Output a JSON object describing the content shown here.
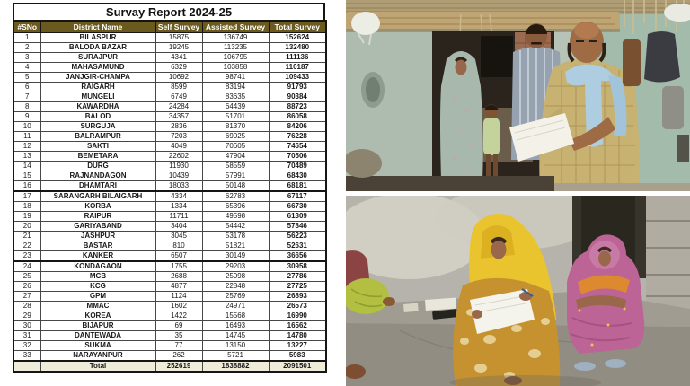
{
  "table": {
    "title": "Survay Report 2024-25",
    "headers": [
      "#SNo",
      "District Name",
      "Self Survey",
      "Assisted Survey",
      "Total Survey"
    ],
    "rows": [
      [
        "1",
        "BILASPUR",
        "15875",
        "136749",
        "152624"
      ],
      [
        "2",
        "BALODA BAZAR",
        "19245",
        "113235",
        "132480"
      ],
      [
        "3",
        "SURAJPUR",
        "4341",
        "106795",
        "111136"
      ],
      [
        "4",
        "MAHASAMUND",
        "6329",
        "103858",
        "110187"
      ],
      [
        "5",
        "JANJGIR-CHAMPA",
        "10692",
        "98741",
        "109433"
      ],
      [
        "6",
        "RAIGARH",
        "8599",
        "83194",
        "91793"
      ],
      [
        "7",
        "MUNGELI",
        "6749",
        "83635",
        "90384"
      ],
      [
        "8",
        "KAWARDHA",
        "24284",
        "64439",
        "88723"
      ],
      [
        "9",
        "BALOD",
        "34357",
        "51701",
        "86058"
      ],
      [
        "10",
        "SURGUJA",
        "2836",
        "81370",
        "84206"
      ],
      [
        "11",
        "BALRAMPUR",
        "7203",
        "69025",
        "76228"
      ],
      [
        "12",
        "SAKTI",
        "4049",
        "70605",
        "74654"
      ],
      [
        "13",
        "BEMETARA",
        "22602",
        "47904",
        "70506"
      ],
      [
        "14",
        "DURG",
        "11930",
        "58559",
        "70489"
      ],
      [
        "15",
        "RAJNANDAGON",
        "10439",
        "57991",
        "68430"
      ],
      [
        "16",
        "DHAMTARI",
        "18033",
        "50148",
        "68181"
      ],
      [
        "17",
        "SARANGARH BILAIGARH",
        "4334",
        "62783",
        "67117"
      ],
      [
        "18",
        "KORBA",
        "1334",
        "65396",
        "66730"
      ],
      [
        "19",
        "RAIPUR",
        "11711",
        "49598",
        "61309"
      ],
      [
        "20",
        "GARIYABAND",
        "3404",
        "54442",
        "57846"
      ],
      [
        "21",
        "JASHPUR",
        "3045",
        "53178",
        "56223"
      ],
      [
        "22",
        "BASTAR",
        "810",
        "51821",
        "52631"
      ],
      [
        "23",
        "KANKER",
        "6507",
        "30149",
        "36656"
      ],
      [
        "24",
        "KONDAGAON",
        "1755",
        "29203",
        "30958"
      ],
      [
        "25",
        "MCB",
        "2688",
        "25098",
        "27786"
      ],
      [
        "26",
        "KCG",
        "4877",
        "22848",
        "27725"
      ],
      [
        "27",
        "GPM",
        "1124",
        "25769",
        "26893"
      ],
      [
        "28",
        "MMAC",
        "1602",
        "24971",
        "26573"
      ],
      [
        "29",
        "KOREA",
        "1422",
        "15568",
        "16990"
      ],
      [
        "30",
        "BIJAPUR",
        "69",
        "16493",
        "16562"
      ],
      [
        "31",
        "DANTEWADA",
        "35",
        "14745",
        "14780"
      ],
      [
        "32",
        "SUKMA",
        "77",
        "13150",
        "13227"
      ],
      [
        "33",
        "NARAYANPUR",
        "262",
        "5721",
        "5983"
      ]
    ],
    "total_row": [
      "",
      "Total",
      "252619",
      "1838882",
      "2091501"
    ],
    "thick_top_rows": [
      17,
      24
    ],
    "colors": {
      "header_bg": "#6b5a1e",
      "header_text": "#ffffff",
      "total_column_bg": "#ffff00",
      "total_row_bg": "#efecd9"
    }
  },
  "photos": {
    "top": {
      "description": "Survey officials with papers talking to a woman and child at the doorway of a rural mud house"
    },
    "bottom": {
      "description": "Woman in yellow saree writing on survey form while another woman in pink saree sits beside concrete steps"
    }
  }
}
